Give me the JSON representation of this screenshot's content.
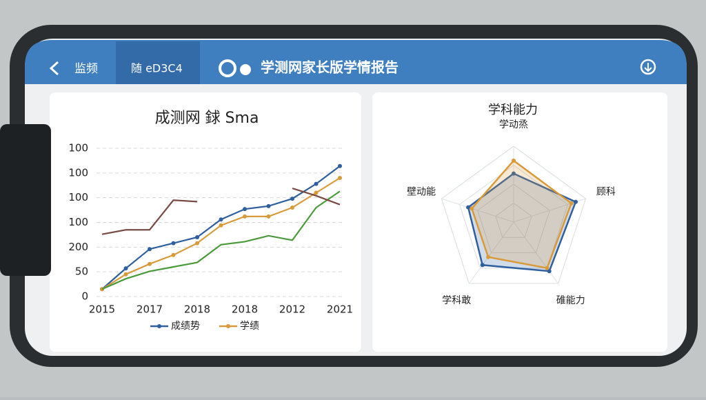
{
  "header": {
    "back": "监频",
    "tab": "随 eD3C4",
    "title": "学测网家长版学情报告"
  },
  "line_chart": {
    "type": "line",
    "title": "成测网 銶 Sma",
    "y_labels": [
      "100",
      "100",
      "100",
      "100",
      "200",
      "50",
      "0"
    ],
    "x_labels": [
      "2015",
      "2017",
      "2018",
      "2018",
      "2012",
      "2021"
    ],
    "ylim": [
      0,
      100
    ],
    "grid": true,
    "series": [
      {
        "name": "成绩势",
        "color": "#2f5f9e",
        "values": [
          5,
          19,
          32,
          36,
          40,
          52,
          59,
          61,
          66,
          76,
          88
        ]
      },
      {
        "name": "学绩",
        "color": "#d99a3a",
        "values": [
          5,
          15,
          22,
          28,
          36,
          48,
          54,
          54,
          60,
          70,
          80
        ]
      },
      {
        "color": "#4a9a3a",
        "values": [
          5,
          12,
          17,
          20,
          23,
          35,
          37,
          41,
          38,
          60,
          71
        ]
      },
      {
        "color": "#7a4a44",
        "values": [
          42,
          45,
          45,
          65,
          64,
          null,
          null,
          null,
          73,
          68,
          62
        ]
      }
    ]
  },
  "radar_chart": {
    "type": "radar",
    "title": "学科能力",
    "axes": [
      "学动烝",
      "顾科",
      "碓能力",
      "学科敢",
      "壁动能"
    ],
    "rlim": [
      0,
      100
    ],
    "rticks": [
      25,
      50,
      75,
      100
    ],
    "series": [
      {
        "color": "#2f5f9e",
        "values": [
          64,
          86,
          80,
          70,
          63
        ]
      },
      {
        "color": "#d99a3a",
        "values": [
          81,
          80,
          75,
          57,
          58
        ]
      }
    ]
  }
}
